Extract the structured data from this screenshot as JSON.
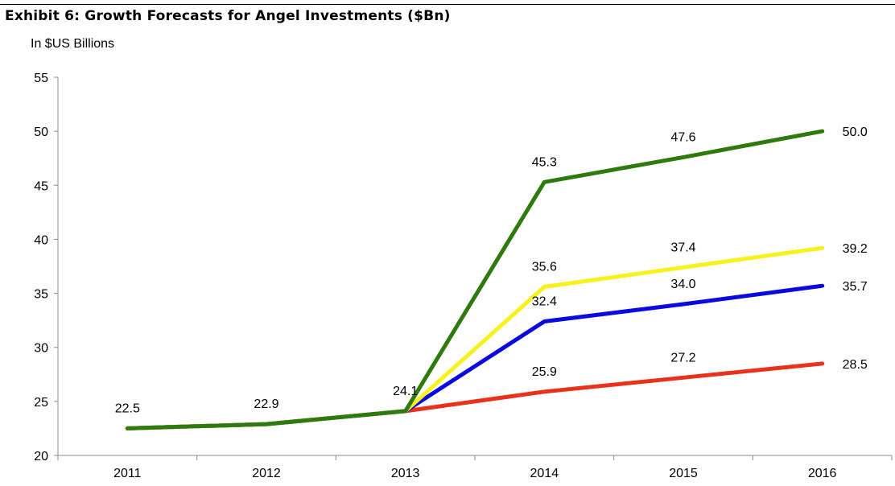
{
  "chart_data": {
    "type": "line",
    "title": "Exhibit 6: Growth Forecasts for Angel Investments ($Bn)",
    "ylabel": "In $US Billions",
    "xlabel": "",
    "categories": [
      "2011",
      "2012",
      "2013",
      "2014",
      "2015",
      "2016"
    ],
    "ylim": [
      20,
      55
    ],
    "yticks": [
      20,
      25,
      30,
      35,
      40,
      45,
      50,
      55
    ],
    "grid": false,
    "legend": "none",
    "series": [
      {
        "color": "#E8321C",
        "values": [
          22.5,
          22.9,
          24.1,
          25.9,
          27.2,
          28.5
        ],
        "labels": [
          "",
          "",
          "",
          "25.9",
          "27.2",
          "28.5"
        ]
      },
      {
        "color": "#0A0AE0",
        "values": [
          22.5,
          22.9,
          24.1,
          32.4,
          34.0,
          35.7
        ],
        "labels": [
          "",
          "",
          "",
          "32.4",
          "34.0",
          "35.7"
        ]
      },
      {
        "color": "#F7F21C",
        "values": [
          22.5,
          22.9,
          24.1,
          35.6,
          37.4,
          39.2
        ],
        "labels": [
          "",
          "",
          "",
          "35.6",
          "37.4",
          "39.2"
        ]
      },
      {
        "color": "#2F7A0C",
        "values": [
          22.5,
          22.9,
          24.1,
          45.3,
          47.6,
          50.0
        ],
        "labels": [
          "22.5",
          "22.9",
          "24.1",
          "45.3",
          "47.6",
          "50.0"
        ]
      }
    ]
  }
}
